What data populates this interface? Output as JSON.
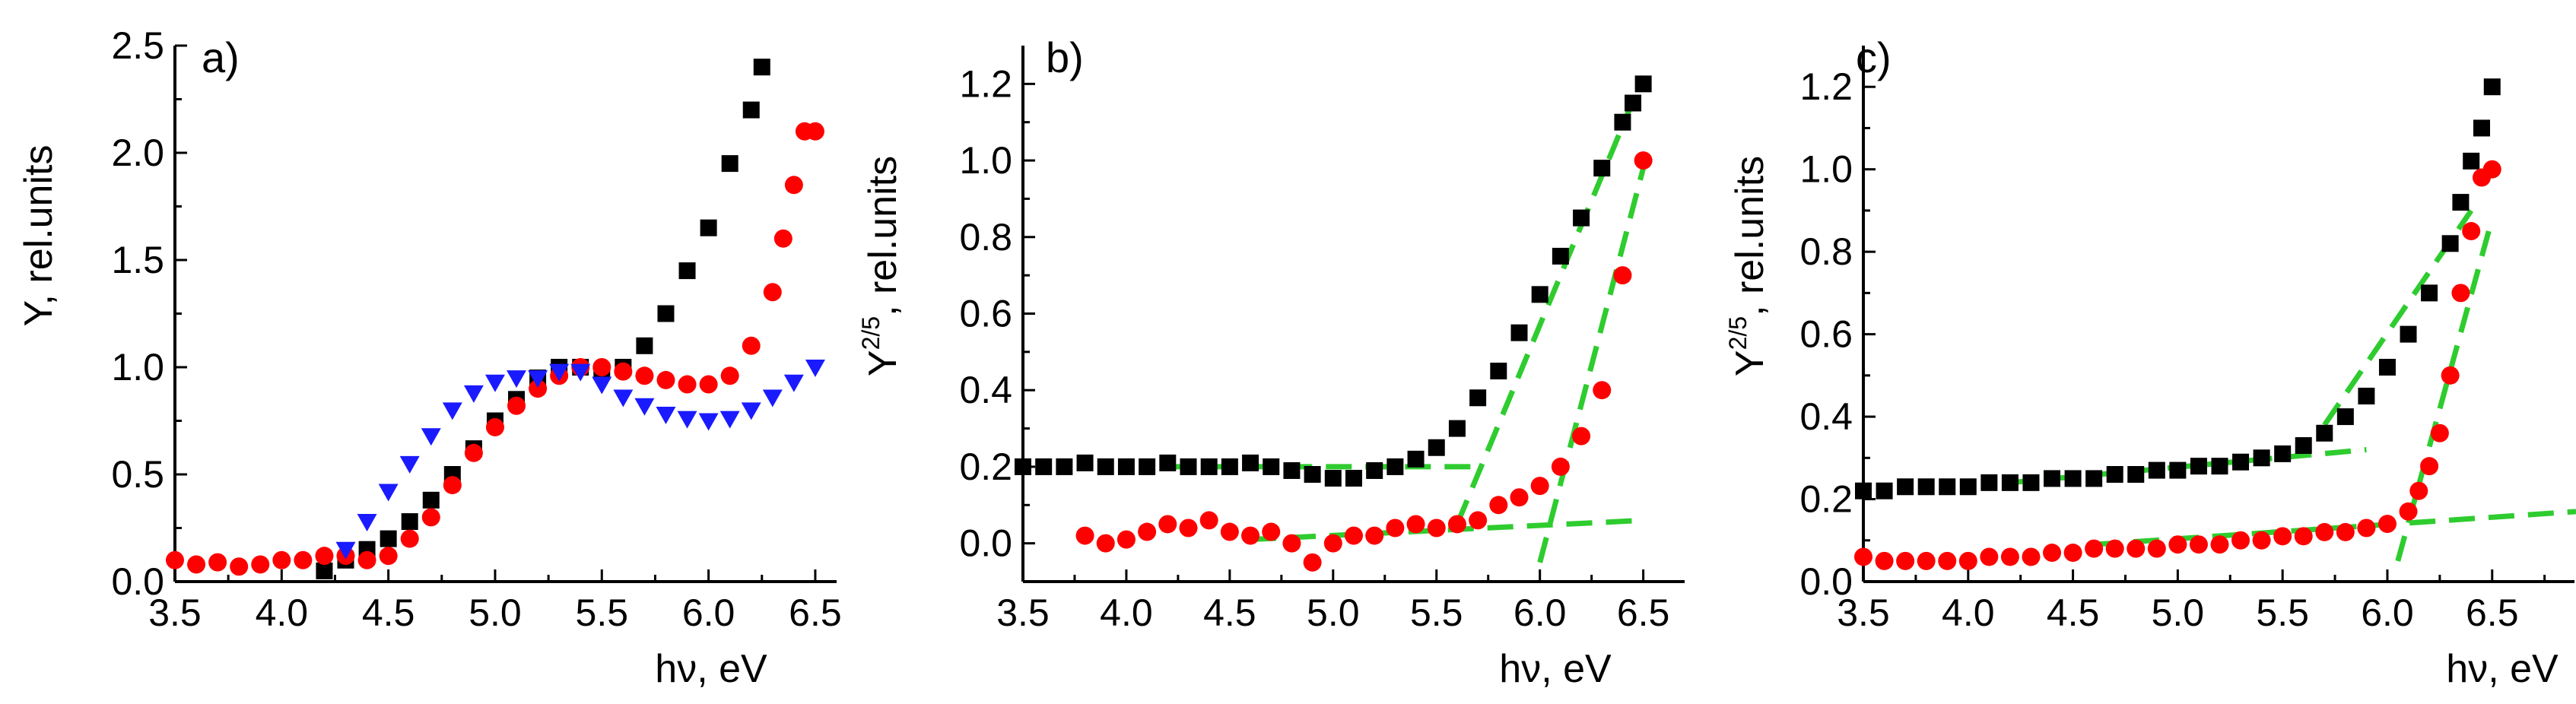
{
  "chart_data": [
    {
      "panel_label": "a)",
      "type": "scatter",
      "xlabel": "hν, eV",
      "ylabel": "Y, rel.units",
      "xlim": [
        3.5,
        6.6
      ],
      "ylim": [
        0.0,
        2.5
      ],
      "x_ticks": [
        "3.5",
        "4.0",
        "4.5",
        "5.0",
        "5.5",
        "6.0",
        "6.5"
      ],
      "y_ticks": [
        "0.0",
        "0.5",
        "1.0",
        "1.5",
        "2.0",
        "2.5"
      ],
      "colors": {
        "black": "#000000",
        "red": "#ff0000",
        "blue": "#1a1aff"
      },
      "series": [
        {
          "marker": "square",
          "color": "#000000",
          "x": [
            4.2,
            4.3,
            4.4,
            4.5,
            4.6,
            4.7,
            4.8,
            4.9,
            5.0,
            5.1,
            5.2,
            5.3,
            5.4,
            5.5,
            5.6,
            5.7,
            5.8,
            5.9,
            6.0,
            6.1,
            6.2
          ],
          "y": [
            0.05,
            0.1,
            0.15,
            0.2,
            0.28,
            0.38,
            0.5,
            0.62,
            0.75,
            0.85,
            0.95,
            1.0,
            1.0,
            0.98,
            1.0,
            1.1,
            1.25,
            1.45,
            1.65,
            1.95,
            2.2
          ]
        },
        {
          "marker": "square",
          "color": "#000000",
          "x": [
            6.25
          ],
          "y": [
            2.4
          ]
        },
        {
          "marker": "circle",
          "color": "#ff0000",
          "x": [
            3.5,
            3.6,
            3.7,
            3.8,
            3.9,
            4.0,
            4.1,
            4.2,
            4.3,
            4.4,
            4.5,
            4.6,
            4.7,
            4.8,
            4.9,
            5.0,
            5.1,
            5.2,
            5.3,
            5.4,
            5.5,
            5.6,
            5.7,
            5.8,
            5.9,
            6.0,
            6.1,
            6.2,
            6.3,
            6.35,
            6.4,
            6.45,
            6.5
          ],
          "y": [
            0.1,
            0.08,
            0.09,
            0.07,
            0.08,
            0.1,
            0.1,
            0.12,
            0.12,
            0.1,
            0.12,
            0.2,
            0.3,
            0.45,
            0.6,
            0.72,
            0.82,
            0.9,
            0.96,
            1.0,
            1.0,
            0.98,
            0.96,
            0.94,
            0.92,
            0.92,
            0.96,
            1.1,
            1.35,
            1.6,
            1.85,
            2.1,
            2.1
          ]
        },
        {
          "marker": "triangle-down",
          "color": "#1a1aff",
          "x": [
            4.3,
            4.4,
            4.5,
            4.6,
            4.7,
            4.8,
            4.9,
            5.0,
            5.1,
            5.2,
            5.3,
            5.4,
            5.5,
            5.6,
            5.7,
            5.8,
            5.9,
            6.0,
            6.1,
            6.2,
            6.3,
            6.4,
            6.5
          ],
          "y": [
            0.15,
            0.28,
            0.42,
            0.55,
            0.68,
            0.8,
            0.88,
            0.93,
            0.95,
            0.95,
            0.98,
            0.98,
            0.92,
            0.86,
            0.82,
            0.78,
            0.76,
            0.75,
            0.76,
            0.8,
            0.86,
            0.93,
            1.0
          ]
        }
      ]
    },
    {
      "panel_label": "b)",
      "type": "scatter",
      "xlabel": "hν, eV",
      "ylabel": "Y",
      "ylabel_sup": "2/5",
      "ylabel_rest": ", rel.units",
      "xlim": [
        3.5,
        6.7
      ],
      "ylim": [
        -0.1,
        1.3
      ],
      "x_ticks": [
        "3.5",
        "4.0",
        "4.5",
        "5.0",
        "5.5",
        "6.0",
        "6.5"
      ],
      "y_ticks": [
        "0.0",
        "0.2",
        "0.4",
        "0.6",
        "0.8",
        "1.0",
        "1.2"
      ],
      "colors": {
        "black": "#000000",
        "red": "#ff0000",
        "fit": "#2ecc2e"
      },
      "series": [
        {
          "marker": "square",
          "color": "#000000",
          "x": [
            3.5,
            3.6,
            3.7,
            3.8,
            3.9,
            4.0,
            4.1,
            4.2,
            4.3,
            4.4,
            4.5,
            4.6,
            4.7,
            4.8,
            4.9,
            5.0,
            5.1,
            5.2,
            5.3,
            5.4,
            5.5,
            5.6,
            5.7,
            5.8,
            5.9,
            6.0,
            6.1,
            6.2,
            6.3,
            6.4,
            6.45,
            6.5
          ],
          "y": [
            0.2,
            0.2,
            0.2,
            0.21,
            0.2,
            0.2,
            0.2,
            0.21,
            0.2,
            0.2,
            0.2,
            0.21,
            0.2,
            0.19,
            0.18,
            0.17,
            0.17,
            0.19,
            0.2,
            0.22,
            0.25,
            0.3,
            0.38,
            0.45,
            0.55,
            0.65,
            0.75,
            0.85,
            0.98,
            1.1,
            1.15,
            1.2
          ]
        },
        {
          "marker": "circle",
          "color": "#ff0000",
          "x": [
            3.8,
            3.9,
            4.0,
            4.1,
            4.2,
            4.3,
            4.4,
            4.5,
            4.6,
            4.7,
            4.8,
            4.9,
            5.0,
            5.1,
            5.2,
            5.3,
            5.4,
            5.5,
            5.6,
            5.7,
            5.8,
            5.9,
            6.0,
            6.1,
            6.2,
            6.3,
            6.4,
            6.5
          ],
          "y": [
            0.02,
            0.0,
            0.01,
            0.03,
            0.05,
            0.04,
            0.06,
            0.03,
            0.02,
            0.03,
            0.0,
            -0.05,
            0.0,
            0.02,
            0.02,
            0.04,
            0.05,
            0.04,
            0.05,
            0.06,
            0.1,
            0.12,
            0.15,
            0.2,
            0.28,
            0.4,
            0.7,
            1.0
          ]
        }
      ],
      "fit_lines": [
        {
          "x": [
            4.2,
            5.7
          ],
          "y": [
            0.2,
            0.2
          ]
        },
        {
          "x": [
            5.6,
            6.5
          ],
          "y": [
            0.05,
            1.22
          ]
        },
        {
          "x": [
            4.6,
            6.5
          ],
          "y": [
            0.01,
            0.06
          ]
        },
        {
          "x": [
            6.0,
            6.5
          ],
          "y": [
            -0.05,
            0.98
          ]
        }
      ]
    },
    {
      "panel_label": "c)",
      "type": "scatter",
      "xlabel": "hν, eV",
      "ylabel": "Y",
      "ylabel_sup": "2/5",
      "ylabel_rest": ", rel.units",
      "xlim": [
        3.5,
        6.9
      ],
      "ylim": [
        0.0,
        1.3
      ],
      "x_ticks": [
        "3.5",
        "4.0",
        "4.5",
        "5.0",
        "5.5",
        "6.0",
        "6.5"
      ],
      "y_ticks": [
        "0.0",
        "0.2",
        "0.4",
        "0.6",
        "0.8",
        "1.0",
        "1.2"
      ],
      "colors": {
        "black": "#000000",
        "red": "#ff0000",
        "fit": "#2ecc2e"
      },
      "series": [
        {
          "marker": "square",
          "color": "#000000",
          "x": [
            3.5,
            3.6,
            3.7,
            3.8,
            3.9,
            4.0,
            4.1,
            4.2,
            4.3,
            4.4,
            4.5,
            4.6,
            4.7,
            4.8,
            4.9,
            5.0,
            5.1,
            5.2,
            5.3,
            5.4,
            5.5,
            5.6,
            5.7,
            5.8,
            5.9,
            6.0,
            6.1,
            6.2,
            6.3,
            6.35,
            6.4,
            6.45,
            6.5
          ],
          "y": [
            0.22,
            0.22,
            0.23,
            0.23,
            0.23,
            0.23,
            0.24,
            0.24,
            0.24,
            0.25,
            0.25,
            0.25,
            0.26,
            0.26,
            0.27,
            0.27,
            0.28,
            0.28,
            0.29,
            0.3,
            0.31,
            0.33,
            0.36,
            0.4,
            0.45,
            0.52,
            0.6,
            0.7,
            0.82,
            0.92,
            1.02,
            1.1,
            1.2
          ]
        },
        {
          "marker": "circle",
          "color": "#ff0000",
          "x": [
            3.5,
            3.6,
            3.7,
            3.8,
            3.9,
            4.0,
            4.1,
            4.2,
            4.3,
            4.4,
            4.5,
            4.6,
            4.7,
            4.8,
            4.9,
            5.0,
            5.1,
            5.2,
            5.3,
            5.4,
            5.5,
            5.6,
            5.7,
            5.8,
            5.9,
            6.0,
            6.1,
            6.15,
            6.2,
            6.25,
            6.3,
            6.35,
            6.4,
            6.45,
            6.5
          ],
          "y": [
            0.06,
            0.05,
            0.05,
            0.05,
            0.05,
            0.05,
            0.06,
            0.06,
            0.06,
            0.07,
            0.07,
            0.08,
            0.08,
            0.08,
            0.08,
            0.09,
            0.09,
            0.09,
            0.1,
            0.1,
            0.11,
            0.11,
            0.12,
            0.12,
            0.13,
            0.14,
            0.17,
            0.22,
            0.28,
            0.36,
            0.5,
            0.7,
            0.85,
            0.98,
            1.0
          ]
        }
      ],
      "fit_lines": [
        {
          "x": [
            4.2,
            5.9
          ],
          "y": [
            0.24,
            0.32
          ]
        },
        {
          "x": [
            5.7,
            6.4
          ],
          "y": [
            0.38,
            0.9
          ]
        },
        {
          "x": [
            4.6,
            6.9
          ],
          "y": [
            0.09,
            0.17
          ]
        },
        {
          "x": [
            6.05,
            6.5
          ],
          "y": [
            0.05,
            0.88
          ]
        }
      ]
    }
  ]
}
